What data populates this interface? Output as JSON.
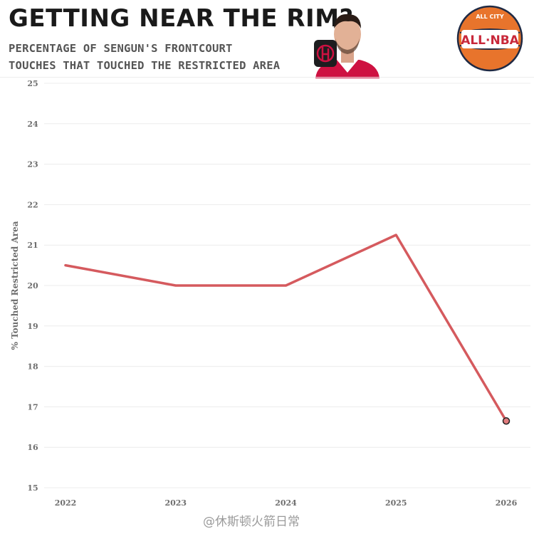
{
  "header": {
    "title": "GETTING NEAR THE RIM?",
    "subtitle_line1": "PERCENTAGE OF SENGUN'S FRONTCOURT",
    "subtitle_line2": "TOUCHES THAT TOUCHED THE RESTRICTED AREA"
  },
  "brand": {
    "small_text": "ALL CITY",
    "logo_text": "ALL·NBA"
  },
  "watermark": "@休斯顿火箭日常",
  "colors": {
    "line": "#d55a5e",
    "text": "#6e6e6e",
    "title": "#1a1a1a",
    "brand_orange": "#e8742c",
    "brand_red": "#c8283a",
    "team_red": "#ce1141"
  },
  "chart_data": {
    "type": "line",
    "title": "GETTING NEAR THE RIM?",
    "xlabel": "",
    "ylabel": "% Touched Restricted Area",
    "categories": [
      "2022",
      "2023",
      "2024",
      "2025",
      "2026"
    ],
    "series": [
      {
        "values": [
          20.5,
          20.0,
          20.0,
          21.25,
          16.65
        ]
      }
    ],
    "ylim": [
      15,
      25
    ],
    "yticks": [
      15,
      16,
      17,
      18,
      19,
      20,
      21,
      22,
      23,
      24,
      25
    ],
    "grid": true,
    "end_marker": true
  }
}
